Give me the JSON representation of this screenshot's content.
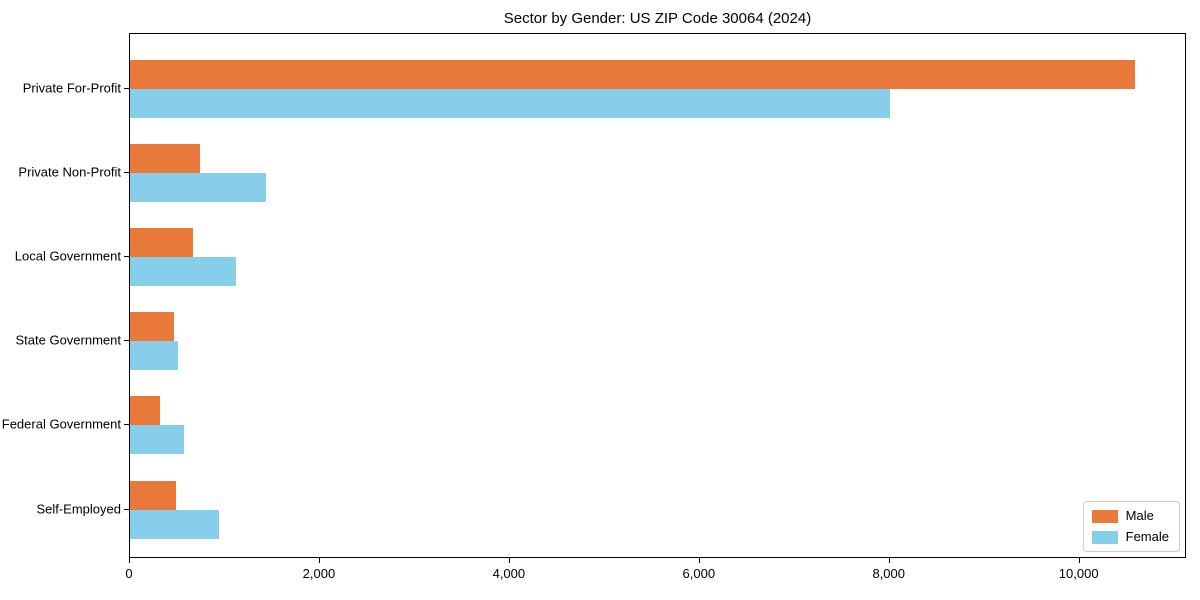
{
  "chart_data": {
    "type": "bar",
    "orientation": "horizontal",
    "title": "Sector by Gender: US ZIP Code 30064 (2024)",
    "categories": [
      "Private For-Profit",
      "Private Non-Profit",
      "Local Government",
      "State Government",
      "Federal Government",
      "Self-Employed"
    ],
    "series": [
      {
        "name": "Male",
        "color": "#e8793b",
        "values": [
          10600,
          740,
          660,
          460,
          320,
          490
        ]
      },
      {
        "name": "Female",
        "color": "#87ceeb",
        "values": [
          8020,
          1440,
          1120,
          510,
          570,
          940
        ]
      }
    ],
    "xlabel": "",
    "ylabel": "",
    "xlim": [
      0,
      11130
    ],
    "x_ticks": [
      0,
      2000,
      4000,
      6000,
      8000,
      10000
    ],
    "x_tick_labels": [
      "0",
      "2,000",
      "4,000",
      "6,000",
      "8,000",
      "10,000"
    ],
    "grid": false,
    "legend": {
      "position": "lower right",
      "entries": [
        "Male",
        "Female"
      ]
    },
    "colors": {
      "axis": "#000000",
      "text": "#000000",
      "legend_border": "#cccccc",
      "background": "#ffffff"
    }
  }
}
